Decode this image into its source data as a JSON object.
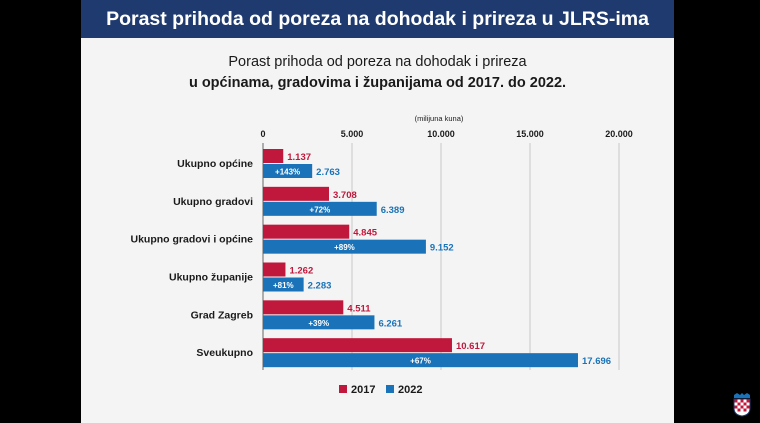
{
  "banner": {
    "title": "Porast prihoda od poreza na dohodak i prireza u JLRS-ima"
  },
  "chart_data": {
    "type": "bar",
    "orientation": "horizontal",
    "title_line1": "Porast prihoda od poreza na dohodak i prireza",
    "title_line2": "u općinama, gradovima i županijama od 2017. do 2022.",
    "unit_label": "(milijuna kuna)",
    "categories": [
      "Ukupno općine",
      "Ukupno gradovi",
      "Ukupno gradovi i općine",
      "Ukupno županije",
      "Grad Zagreb",
      "Sveukupno"
    ],
    "series": [
      {
        "name": "2017",
        "color": "#c0183c",
        "values": [
          1137,
          3708,
          4845,
          1262,
          4511,
          10617
        ],
        "labels": [
          "1.137",
          "3.708",
          "4.845",
          "1.262",
          "4.511",
          "10.617"
        ]
      },
      {
        "name": "2022",
        "color": "#1a73b8",
        "values": [
          2763,
          6389,
          9152,
          2283,
          6261,
          17696
        ],
        "labels": [
          "2.763",
          "6.389",
          "9.152",
          "2.283",
          "6.261",
          "17.696"
        ]
      }
    ],
    "growth_labels": [
      "+143%",
      "+72%",
      "+89%",
      "+81%",
      "+39%",
      "+67%"
    ],
    "xlim": [
      0,
      20000
    ],
    "ticks": [
      0,
      5000,
      10000,
      15000,
      20000
    ],
    "tick_labels": [
      "0",
      "5.000",
      "10.000",
      "15.000",
      "20.000"
    ],
    "grid": true,
    "legend_position": "bottom"
  }
}
